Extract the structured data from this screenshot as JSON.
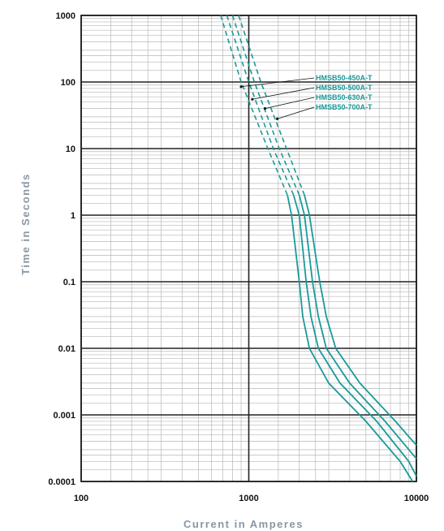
{
  "chart_data": {
    "type": "line",
    "xlabel": "Current in Amperes",
    "ylabel": "Time in Seconds",
    "x_scale": "log",
    "y_scale": "log",
    "xlim": [
      100,
      10000
    ],
    "ylim": [
      0.0001,
      1000
    ],
    "x_ticks": [
      "100",
      "1000",
      "10000"
    ],
    "y_ticks": [
      "0.0001",
      "0.001",
      "0.01",
      "0.1",
      "1",
      "10",
      "100",
      "1000"
    ],
    "grid": true,
    "series_color": "#1a9a9a",
    "series": [
      {
        "name": "HMSB50-450A-T",
        "dashed_portion": [
          [
            680,
            1000
          ],
          [
            900,
            100
          ],
          [
            1300,
            10
          ],
          [
            1700,
            2
          ]
        ],
        "solid_portion": [
          [
            1700,
            2
          ],
          [
            1800,
            1
          ],
          [
            2000,
            0.1
          ],
          [
            2100,
            0.03
          ],
          [
            2300,
            0.01
          ],
          [
            3000,
            0.003
          ],
          [
            5000,
            0.0008
          ],
          [
            8000,
            0.0002
          ],
          [
            9500,
            0.0001
          ]
        ]
      },
      {
        "name": "HMSB50-500A-T",
        "dashed_portion": [
          [
            740,
            1000
          ],
          [
            1000,
            100
          ],
          [
            1400,
            10
          ],
          [
            1850,
            2
          ]
        ],
        "solid_portion": [
          [
            1850,
            2
          ],
          [
            2000,
            1
          ],
          [
            2200,
            0.1
          ],
          [
            2350,
            0.03
          ],
          [
            2600,
            0.01
          ],
          [
            3500,
            0.003
          ],
          [
            5800,
            0.0008
          ],
          [
            9000,
            0.0002
          ],
          [
            10000,
            0.00012
          ]
        ]
      },
      {
        "name": "HMSB50-630A-T",
        "dashed_portion": [
          [
            800,
            1000
          ],
          [
            1080,
            100
          ],
          [
            1520,
            10
          ],
          [
            2000,
            2
          ]
        ],
        "solid_portion": [
          [
            2000,
            2
          ],
          [
            2150,
            1
          ],
          [
            2400,
            0.1
          ],
          [
            2600,
            0.03
          ],
          [
            2900,
            0.01
          ],
          [
            4000,
            0.003
          ],
          [
            6500,
            0.0008
          ],
          [
            10000,
            0.00022
          ]
        ]
      },
      {
        "name": "HMSB50-700A-T",
        "dashed_portion": [
          [
            870,
            1000
          ],
          [
            1180,
            100
          ],
          [
            1680,
            10
          ],
          [
            2150,
            2
          ]
        ],
        "solid_portion": [
          [
            2150,
            2
          ],
          [
            2300,
            1
          ],
          [
            2650,
            0.1
          ],
          [
            2900,
            0.03
          ],
          [
            3300,
            0.01
          ],
          [
            4600,
            0.003
          ],
          [
            7500,
            0.0008
          ],
          [
            10000,
            0.00035
          ]
        ]
      }
    ],
    "legend": [
      {
        "label": "HMSB50-450A-T",
        "point": [
          900,
          85
        ]
      },
      {
        "label": "HMSB50-500A-T",
        "point": [
          1050,
          55
        ]
      },
      {
        "label": "HMSB50-630A-T",
        "point": [
          1250,
          40
        ]
      },
      {
        "label": "HMSB50-700A-T",
        "point": [
          1480,
          28
        ]
      }
    ]
  }
}
